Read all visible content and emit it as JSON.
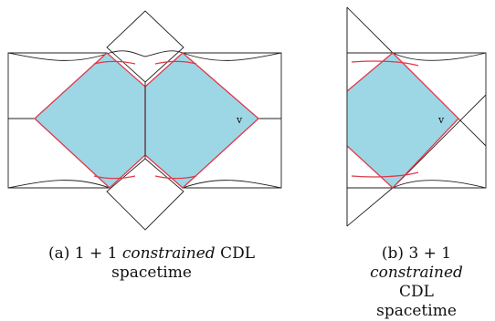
{
  "figure_a": {
    "vertex_label": "v",
    "caption": {
      "tag": "(a)",
      "math": "1 + 1",
      "emph": "constrained",
      "rest": "CDL",
      "line2": "spacetime"
    }
  },
  "figure_b": {
    "vertex_label": "v",
    "caption": {
      "tag": "(b)",
      "math": "3 + 1",
      "emph": "constrained",
      "rest": "CDL",
      "line3": "spacetime"
    }
  },
  "colors": {
    "region_fill": "#9dd7e6",
    "boundary": "#e0394a",
    "outline": "#222222"
  }
}
